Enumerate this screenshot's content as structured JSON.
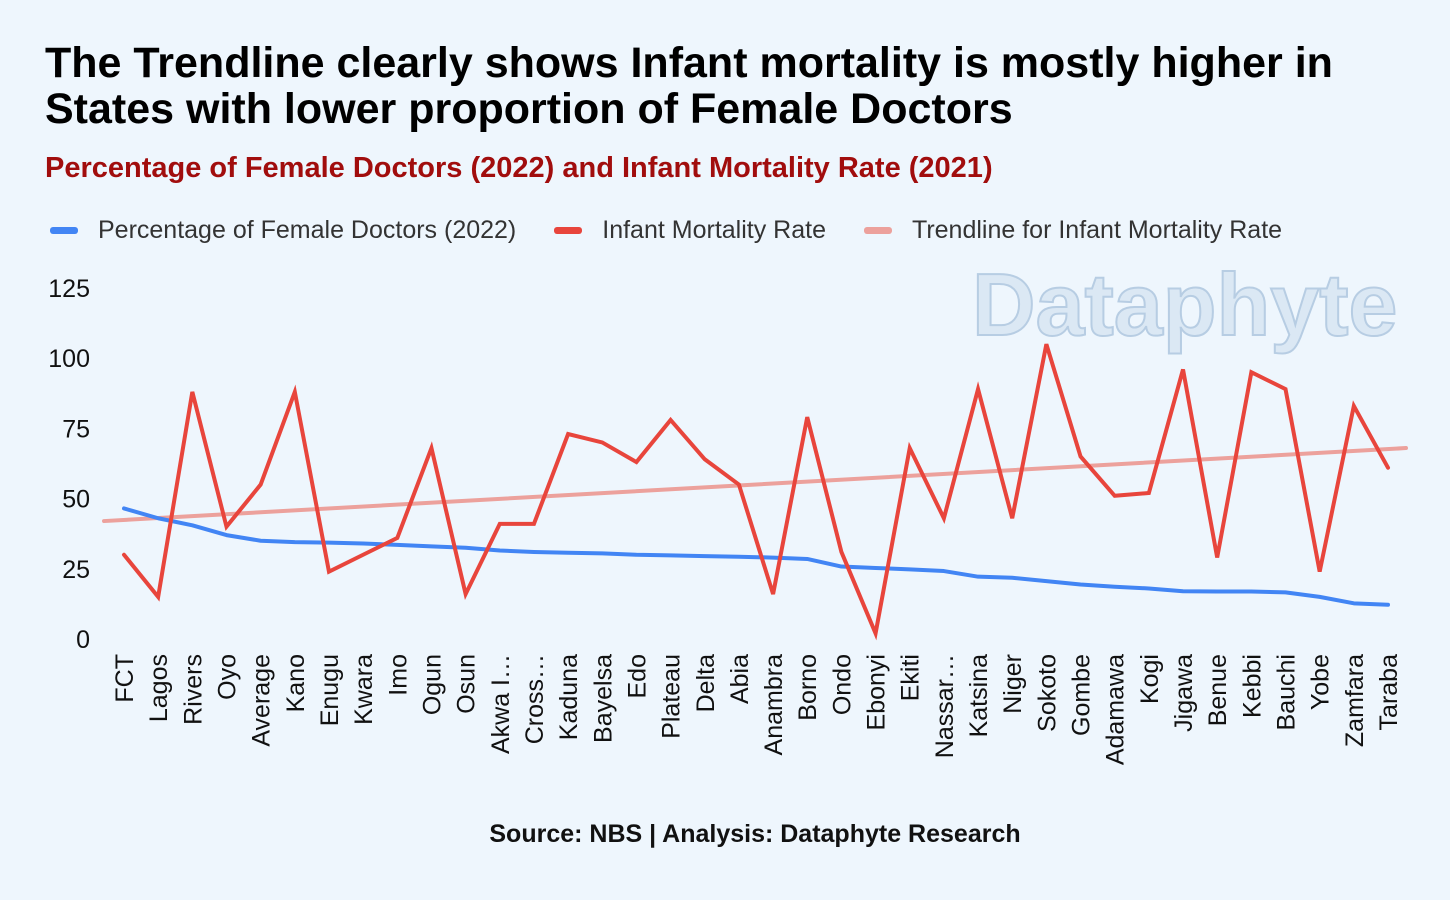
{
  "title": "The Trendline clearly shows Infant mortality is mostly higher in States with lower proportion of Female Doctors",
  "subtitle": "Percentage of Female Doctors (2022) and Infant Mortality Rate (2021)",
  "source": "Source: NBS | Analysis: Dataphyte Research",
  "watermark": "Dataphyte",
  "colors": {
    "female_doctors": "#4285f4",
    "infant_mortality": "#e8453c",
    "trendline": "#eca19c",
    "subtitle": "#a10d0d"
  },
  "legend": [
    {
      "label": "Percentage of Female Doctors (2022)",
      "color": "#4285f4"
    },
    {
      "label": "Infant Mortality Rate",
      "color": "#e8453c"
    },
    {
      "label": "Trendline for Infant Mortality Rate",
      "color": "#eca19c"
    }
  ],
  "chart_data": {
    "type": "line",
    "title": "Percentage of Female Doctors (2022) and Infant Mortality Rate (2021)",
    "xlabel": "",
    "ylabel": "",
    "ylim": [
      0,
      125
    ],
    "yticks": [
      0,
      25,
      50,
      75,
      100,
      125
    ],
    "grid": false,
    "legend_position": "top",
    "categories": [
      "FCT",
      "Lagos",
      "Rivers",
      "Oyo",
      "Average",
      "Kano",
      "Enugu",
      "Kwara",
      "Imo",
      "Ogun",
      "Osun",
      "Akwa I…",
      "Cross…",
      "Kaduna",
      "Bayelsa",
      "Edo",
      "Plateau",
      "Delta",
      "Abia",
      "Anambra",
      "Borno",
      "Ondo",
      "Ebonyi",
      "Ekiti",
      "Nassar…",
      "Katsina",
      "Niger",
      "Sokoto",
      "Gombe",
      "Adamawa",
      "Kogi",
      "Jigawa",
      "Benue",
      "Kebbi",
      "Bauchi",
      "Yobe",
      "Zamfara",
      "Taraba"
    ],
    "series": [
      {
        "name": "Percentage of Female Doctors (2022)",
        "values": [
          46.5,
          43,
          40.5,
          37,
          35,
          34.5,
          34.3,
          34,
          33.5,
          33,
          32.5,
          31.5,
          31,
          30.7,
          30.5,
          30,
          29.8,
          29.5,
          29.3,
          29,
          28.5,
          25.8,
          25.3,
          24.8,
          24.2,
          22.2,
          21.8,
          20.6,
          19.4,
          18.6,
          18,
          17,
          16.9,
          16.9,
          16.6,
          15,
          12.7,
          12.2
        ]
      },
      {
        "name": "Infant Mortality Rate",
        "values": [
          30,
          15,
          88,
          40,
          55,
          88,
          24,
          30,
          36,
          68,
          16,
          41,
          41,
          73,
          70,
          63,
          78,
          64,
          55,
          16,
          79,
          31,
          2,
          68,
          43,
          89,
          43,
          105,
          65,
          51,
          52,
          96,
          29,
          95,
          89,
          24,
          83,
          61
        ]
      },
      {
        "name": "Trendline for Infant Mortality Rate",
        "start_value": 42,
        "end_value": 68
      }
    ]
  }
}
